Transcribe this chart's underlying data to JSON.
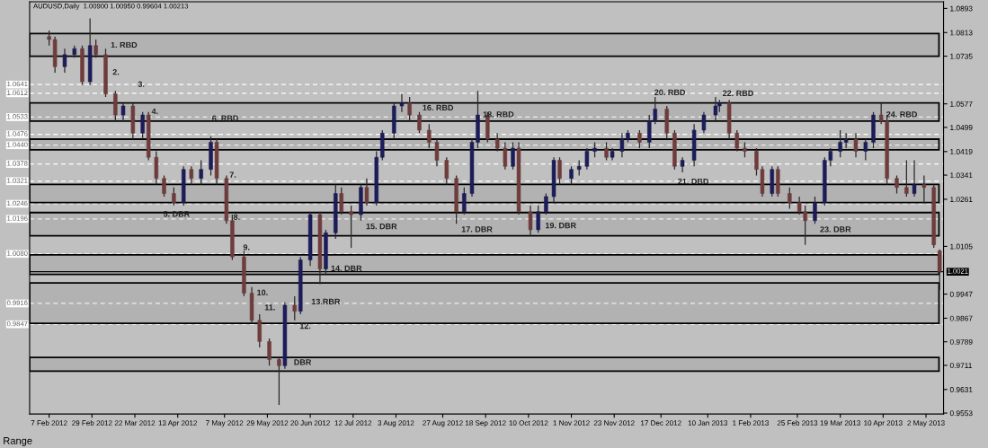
{
  "chart_data": {
    "type": "candlestick",
    "title": "AUDUSD,Daily  1.00900 1.00950 0.99604 1.00213",
    "x": [
      "2012-02-07",
      "2012-02-10",
      "2012-02-15",
      "2012-02-20",
      "2012-02-24",
      "2012-02-28",
      "2012-03-02",
      "2012-03-07",
      "2012-03-12",
      "2012-03-16",
      "2012-03-21",
      "2012-03-26",
      "2012-03-29",
      "2012-04-02",
      "2012-04-06",
      "2012-04-11",
      "2012-04-16",
      "2012-04-20",
      "2012-04-25",
      "2012-04-30",
      "2012-05-03",
      "2012-05-08",
      "2012-05-11",
      "2012-05-17",
      "2012-05-21",
      "2012-05-25",
      "2012-05-30",
      "2012-06-04",
      "2012-06-07",
      "2012-06-12",
      "2012-06-15",
      "2012-06-20",
      "2012-06-25",
      "2012-06-28",
      "2012-07-03",
      "2012-07-06",
      "2012-07-11",
      "2012-07-16",
      "2012-07-19",
      "2012-07-24",
      "2012-07-27",
      "2012-08-02",
      "2012-08-06",
      "2012-08-10",
      "2012-08-15",
      "2012-08-20",
      "2012-08-24",
      "2012-08-29",
      "2012-09-03",
      "2012-09-07",
      "2012-09-11",
      "2012-09-14",
      "2012-09-19",
      "2012-09-24",
      "2012-09-28",
      "2012-10-02",
      "2012-10-05",
      "2012-10-11",
      "2012-10-15",
      "2012-10-19",
      "2012-10-23",
      "2012-10-26",
      "2012-11-01",
      "2012-11-05",
      "2012-11-09",
      "2012-11-13",
      "2012-11-19",
      "2012-11-22",
      "2012-11-27",
      "2012-11-30",
      "2012-12-06",
      "2012-12-11",
      "2012-12-14",
      "2012-12-20",
      "2012-12-24",
      "2012-12-28",
      "2013-01-03",
      "2013-01-08",
      "2013-01-14",
      "2013-01-16",
      "2013-01-21",
      "2013-01-25",
      "2013-01-29",
      "2013-02-04",
      "2013-02-07",
      "2013-02-12",
      "2013-02-15",
      "2013-02-21",
      "2013-02-26",
      "2013-03-01",
      "2013-03-06",
      "2013-03-11",
      "2013-03-14",
      "2013-03-19",
      "2013-03-22",
      "2013-03-27",
      "2013-04-01",
      "2013-04-05",
      "2013-04-09",
      "2013-04-12",
      "2013-04-17",
      "2013-04-22",
      "2013-04-26",
      "2013-05-01",
      "2013-05-06",
      "2013-05-09"
    ],
    "ohlc": [
      [
        1.08,
        1.082,
        1.077,
        1.079
      ],
      [
        1.079,
        1.08,
        1.068,
        1.07
      ],
      [
        1.07,
        1.076,
        1.068,
        1.074
      ],
      [
        1.074,
        1.077,
        1.073,
        1.076
      ],
      [
        1.076,
        1.077,
        1.064,
        1.065
      ],
      [
        1.065,
        1.086,
        1.064,
        1.077
      ],
      [
        1.077,
        1.079,
        1.073,
        1.074
      ],
      [
        1.074,
        1.076,
        1.06,
        1.061
      ],
      [
        1.061,
        1.062,
        1.052,
        1.054
      ],
      [
        1.054,
        1.058,
        1.052,
        1.057
      ],
      [
        1.057,
        1.058,
        1.046,
        1.048
      ],
      [
        1.048,
        1.055,
        1.046,
        1.054
      ],
      [
        1.054,
        1.055,
        1.039,
        1.04
      ],
      [
        1.04,
        1.042,
        1.031,
        1.033
      ],
      [
        1.033,
        1.034,
        1.027,
        1.028
      ],
      [
        1.028,
        1.03,
        1.024,
        1.025
      ],
      [
        1.025,
        1.037,
        1.024,
        1.036
      ],
      [
        1.036,
        1.037,
        1.031,
        1.033
      ],
      [
        1.033,
        1.039,
        1.031,
        1.036
      ],
      [
        1.036,
        1.047,
        1.034,
        1.045
      ],
      [
        1.045,
        1.046,
        1.031,
        1.033
      ],
      [
        1.033,
        1.034,
        1.018,
        1.019
      ],
      [
        1.019,
        1.021,
        1.006,
        1.007
      ],
      [
        1.007,
        1.009,
        0.994,
        0.995
      ],
      [
        0.995,
        0.997,
        0.985,
        0.986
      ],
      [
        0.986,
        0.988,
        0.977,
        0.979
      ],
      [
        0.979,
        0.98,
        0.971,
        0.973
      ],
      [
        0.973,
        0.974,
        0.958,
        0.971
      ],
      [
        0.971,
        0.992,
        0.97,
        0.991
      ],
      [
        0.991,
        0.994,
        0.986,
        0.989
      ],
      [
        0.989,
        1.007,
        0.988,
        1.006
      ],
      [
        1.006,
        1.022,
        1.004,
        1.021
      ],
      [
        1.021,
        1.022,
        0.998,
        1.003
      ],
      [
        1.003,
        1.016,
        1.001,
        1.015
      ],
      [
        1.015,
        1.031,
        1.013,
        1.028
      ],
      [
        1.028,
        1.03,
        1.021,
        1.022
      ],
      [
        1.022,
        1.024,
        1.01,
        1.021
      ],
      [
        1.021,
        1.031,
        1.019,
        1.03
      ],
      [
        1.03,
        1.033,
        1.024,
        1.025
      ],
      [
        1.025,
        1.042,
        1.024,
        1.04
      ],
      [
        1.04,
        1.049,
        1.039,
        1.048
      ],
      [
        1.048,
        1.058,
        1.046,
        1.057
      ],
      [
        1.057,
        1.061,
        1.055,
        1.058
      ],
      [
        1.058,
        1.06,
        1.052,
        1.054
      ],
      [
        1.054,
        1.055,
        1.048,
        1.049
      ],
      [
        1.049,
        1.051,
        1.043,
        1.045
      ],
      [
        1.045,
        1.046,
        1.037,
        1.039
      ],
      [
        1.039,
        1.04,
        1.031,
        1.033
      ],
      [
        1.033,
        1.034,
        1.018,
        1.022
      ],
      [
        1.022,
        1.03,
        1.021,
        1.028
      ],
      [
        1.028,
        1.046,
        1.027,
        1.045
      ],
      [
        1.045,
        1.062,
        1.043,
        1.054
      ],
      [
        1.054,
        1.055,
        1.045,
        1.046
      ],
      [
        1.046,
        1.048,
        1.042,
        1.043
      ],
      [
        1.043,
        1.045,
        1.036,
        1.037
      ],
      [
        1.037,
        1.045,
        1.036,
        1.043
      ],
      [
        1.043,
        1.045,
        1.021,
        1.022
      ],
      [
        1.022,
        1.024,
        1.014,
        1.016
      ],
      [
        1.016,
        1.024,
        1.015,
        1.022
      ],
      [
        1.022,
        1.028,
        1.021,
        1.027
      ],
      [
        1.027,
        1.04,
        1.025,
        1.039
      ],
      [
        1.039,
        1.04,
        1.031,
        1.033
      ],
      [
        1.033,
        1.037,
        1.031,
        1.036
      ],
      [
        1.036,
        1.039,
        1.034,
        1.037
      ],
      [
        1.037,
        1.043,
        1.036,
        1.042
      ],
      [
        1.042,
        1.045,
        1.04,
        1.043
      ],
      [
        1.043,
        1.045,
        1.039,
        1.04
      ],
      [
        1.04,
        1.043,
        1.039,
        1.042
      ],
      [
        1.042,
        1.048,
        1.04,
        1.046
      ],
      [
        1.046,
        1.049,
        1.045,
        1.048
      ],
      [
        1.048,
        1.049,
        1.043,
        1.045
      ],
      [
        1.045,
        1.054,
        1.043,
        1.052
      ],
      [
        1.052,
        1.06,
        1.051,
        1.056
      ],
      [
        1.056,
        1.057,
        1.046,
        1.048
      ],
      [
        1.048,
        1.049,
        1.036,
        1.037
      ],
      [
        1.037,
        1.04,
        1.035,
        1.039
      ],
      [
        1.039,
        1.051,
        1.037,
        1.049
      ],
      [
        1.049,
        1.055,
        1.048,
        1.054
      ],
      [
        1.054,
        1.06,
        1.052,
        1.057
      ],
      [
        1.057,
        1.059,
        1.055,
        1.058
      ],
      [
        1.058,
        1.059,
        1.046,
        1.048
      ],
      [
        1.048,
        1.049,
        1.042,
        1.043
      ],
      [
        1.043,
        1.045,
        1.04,
        1.042
      ],
      [
        1.042,
        1.043,
        1.034,
        1.036
      ],
      [
        1.036,
        1.037,
        1.027,
        1.028
      ],
      [
        1.028,
        1.037,
        1.027,
        1.036
      ],
      [
        1.036,
        1.037,
        1.027,
        1.028
      ],
      [
        1.028,
        1.03,
        1.023,
        1.025
      ],
      [
        1.025,
        1.027,
        1.021,
        1.022
      ],
      [
        1.022,
        1.024,
        1.011,
        1.019
      ],
      [
        1.019,
        1.027,
        1.018,
        1.025
      ],
      [
        1.025,
        1.04,
        1.024,
        1.039
      ],
      [
        1.039,
        1.043,
        1.037,
        1.042
      ],
      [
        1.042,
        1.049,
        1.04,
        1.045
      ],
      [
        1.045,
        1.048,
        1.043,
        1.046
      ],
      [
        1.046,
        1.048,
        1.04,
        1.042
      ],
      [
        1.042,
        1.046,
        1.039,
        1.045
      ],
      [
        1.045,
        1.055,
        1.043,
        1.054
      ],
      [
        1.054,
        1.058,
        1.051,
        1.052
      ],
      [
        1.052,
        1.054,
        1.031,
        1.033
      ],
      [
        1.033,
        1.034,
        1.028,
        1.03
      ],
      [
        1.03,
        1.039,
        1.027,
        1.028
      ],
      [
        1.028,
        1.039,
        1.027,
        1.031
      ],
      [
        1.031,
        1.034,
        1.025,
        1.03
      ],
      [
        1.03,
        1.031,
        1.01,
        1.011
      ],
      [
        1.009,
        1.0095,
        0.99604,
        1.00213
      ]
    ],
    "xlim": [
      "2012-01-28",
      "2013-05-11"
    ],
    "xticks": [
      {
        "value": "2012-02-07",
        "label": "7 Feb 2012"
      },
      {
        "value": "2012-02-29",
        "label": "29 Feb 2012"
      },
      {
        "value": "2012-03-22",
        "label": "22 Mar 2012"
      },
      {
        "value": "2012-04-13",
        "label": "13 Apr 2012"
      },
      {
        "value": "2012-05-07",
        "label": "7 May 2012"
      },
      {
        "value": "2012-05-29",
        "label": "29 May 2012"
      },
      {
        "value": "2012-06-20",
        "label": "20 Jun 2012"
      },
      {
        "value": "2012-07-12",
        "label": "12 Jul 2012"
      },
      {
        "value": "2012-08-03",
        "label": "3 Aug 2012"
      },
      {
        "value": "2012-08-27",
        "label": "27 Aug 2012"
      },
      {
        "value": "2012-09-18",
        "label": "18 Sep 2012"
      },
      {
        "value": "2012-10-10",
        "label": "10 Oct 2012"
      },
      {
        "value": "2012-11-01",
        "label": "1 Nov 2012"
      },
      {
        "value": "2012-11-23",
        "label": "23 Nov 2012"
      },
      {
        "value": "2012-12-17",
        "label": "17 Dec 2012"
      },
      {
        "value": "2013-01-10",
        "label": "10 Jan 2013"
      },
      {
        "value": "2013-02-01",
        "label": "1 Feb 2013"
      },
      {
        "value": "2013-02-25",
        "label": "25 Feb 2013"
      },
      {
        "value": "2013-03-19",
        "label": "19 Mar 2013"
      },
      {
        "value": "2013-04-10",
        "label": "10 Apr 2013"
      },
      {
        "value": "2013-05-02",
        "label": "2 May 2013"
      }
    ],
    "ylim": [
      0.955,
      1.0915
    ],
    "yticks": [
      1.0893,
      1.0813,
      1.0735,
      1.0577,
      1.0499,
      1.0419,
      1.0341,
      1.0261,
      1.0105,
      0.9947,
      0.9867,
      0.9789,
      0.9711,
      0.9631,
      0.9553
    ],
    "ref_lines": [
      {
        "axis": "y",
        "value": 1.0021,
        "label": "1.0021",
        "color": "#000000",
        "line_style": "solid"
      },
      {
        "axis": "y",
        "value": 1.0641,
        "label": "1.0641",
        "color": "#ffffff",
        "line_style": "dashed"
      },
      {
        "axis": "y",
        "value": 1.0612,
        "label": "1.0612",
        "color": "#ffffff",
        "line_style": "dashed"
      },
      {
        "axis": "y",
        "value": 1.0533,
        "label": "1.0533",
        "color": "#ffffff",
        "line_style": "dashed"
      },
      {
        "axis": "y",
        "value": 1.0476,
        "label": "1.0476",
        "color": "#ffffff",
        "line_style": "dashed"
      },
      {
        "axis": "y",
        "value": 1.044,
        "label": "1.0440",
        "color": "#ffffff",
        "line_style": "dashed"
      },
      {
        "axis": "y",
        "value": 1.0378,
        "label": "1.0378",
        "color": "#ffffff",
        "line_style": "dashed"
      },
      {
        "axis": "y",
        "value": 1.0321,
        "label": "1.0321",
        "color": "#ffffff",
        "line_style": "dashed"
      },
      {
        "axis": "y",
        "value": 1.0246,
        "label": "1.0246",
        "color": "#ffffff",
        "line_style": "dashed"
      },
      {
        "axis": "y",
        "value": 1.0196,
        "label": "1.0196",
        "color": "#ffffff",
        "line_style": "dashed"
      },
      {
        "axis": "y",
        "value": 1.008,
        "label": "1.0080",
        "color": "#ffffff",
        "line_style": "dashed"
      },
      {
        "axis": "y",
        "value": 0.9916,
        "label": "0.9916",
        "color": "#ffffff",
        "line_style": "dashed"
      },
      {
        "axis": "y",
        "value": 0.9847,
        "label": "0.9847",
        "color": "#ffffff",
        "line_style": "dashed"
      }
    ],
    "bands": [
      {
        "axis": "y",
        "from": 1.0735,
        "to": 1.081,
        "color": "#000000"
      },
      {
        "axis": "y",
        "from": 1.0425,
        "to": 1.046,
        "color": "#000000"
      },
      {
        "axis": "y",
        "from": 1.025,
        "to": 1.031,
        "color": "#000000"
      },
      {
        "axis": "y",
        "from": 1.052,
        "to": 1.058,
        "color": "#000000"
      },
      {
        "axis": "y",
        "from": 1.014,
        "to": 1.0217,
        "color": "#000000"
      },
      {
        "axis": "y",
        "from": 1.0012,
        "to": 1.0077,
        "color": "#000000"
      },
      {
        "axis": "y",
        "from": 0.985,
        "to": 0.9984,
        "color": "#000000"
      },
      {
        "axis": "y",
        "from": 0.9692,
        "to": 0.9737,
        "color": "#000000"
      }
    ],
    "annotations": [
      {
        "text": "1. RBD",
        "x": "2012-03-07",
        "y": 1.077
      },
      {
        "text": "2.",
        "x": "2012-03-08",
        "y": 1.068
      },
      {
        "text": "3.",
        "x": "2012-03-21",
        "y": 1.064
      },
      {
        "text": "4.",
        "x": "2012-03-28",
        "y": 1.055
      },
      {
        "text": "5. DBR",
        "x": "2012-04-03",
        "y": 1.021
      },
      {
        "text": "6. RBD",
        "x": "2012-04-28",
        "y": 1.0527
      },
      {
        "text": "7.",
        "x": "2012-05-07",
        "y": 1.034
      },
      {
        "text": "8.",
        "x": "2012-05-09",
        "y": 1.02
      },
      {
        "text": "9.",
        "x": "2012-05-14",
        "y": 1.01
      },
      {
        "text": "10.",
        "x": "2012-05-21",
        "y": 0.995
      },
      {
        "text": "11.",
        "x": "2012-05-25",
        "y": 0.988
      },
      {
        "text": "12.",
        "x": "2012-06-12",
        "y": 0.986
      },
      {
        "text": "13.RBR",
        "x": "2012-06-18",
        "y": 0.992
      },
      {
        "text": "DBR",
        "x": "2012-06-09",
        "y": 0.9719
      },
      {
        "text": "14. DBR",
        "x": "2012-06-28",
        "y": 1.003
      },
      {
        "text": "15. DBR",
        "x": "2012-07-16",
        "y": 1.019
      },
      {
        "text": "16. RBD",
        "x": "2012-08-14",
        "y": 1.0562
      },
      {
        "text": "17. DBR",
        "x": "2012-09-03",
        "y": 1.018
      },
      {
        "text": "18. RBD",
        "x": "2012-09-14",
        "y": 1.054
      },
      {
        "text": "19. DBR",
        "x": "2012-10-16",
        "y": 1.0172
      },
      {
        "text": "20. RBD",
        "x": "2012-12-11",
        "y": 1.0613
      },
      {
        "text": "21. DBD",
        "x": "2012-12-23",
        "y": 1.0318
      },
      {
        "text": "22. RBD",
        "x": "2013-01-15",
        "y": 1.061
      },
      {
        "text": "23. DBR",
        "x": "2013-03-06",
        "y": 1.018
      },
      {
        "text": "24. RBD",
        "x": "2013-04-09",
        "y": 1.054
      },
      "Range"
    ]
  }
}
